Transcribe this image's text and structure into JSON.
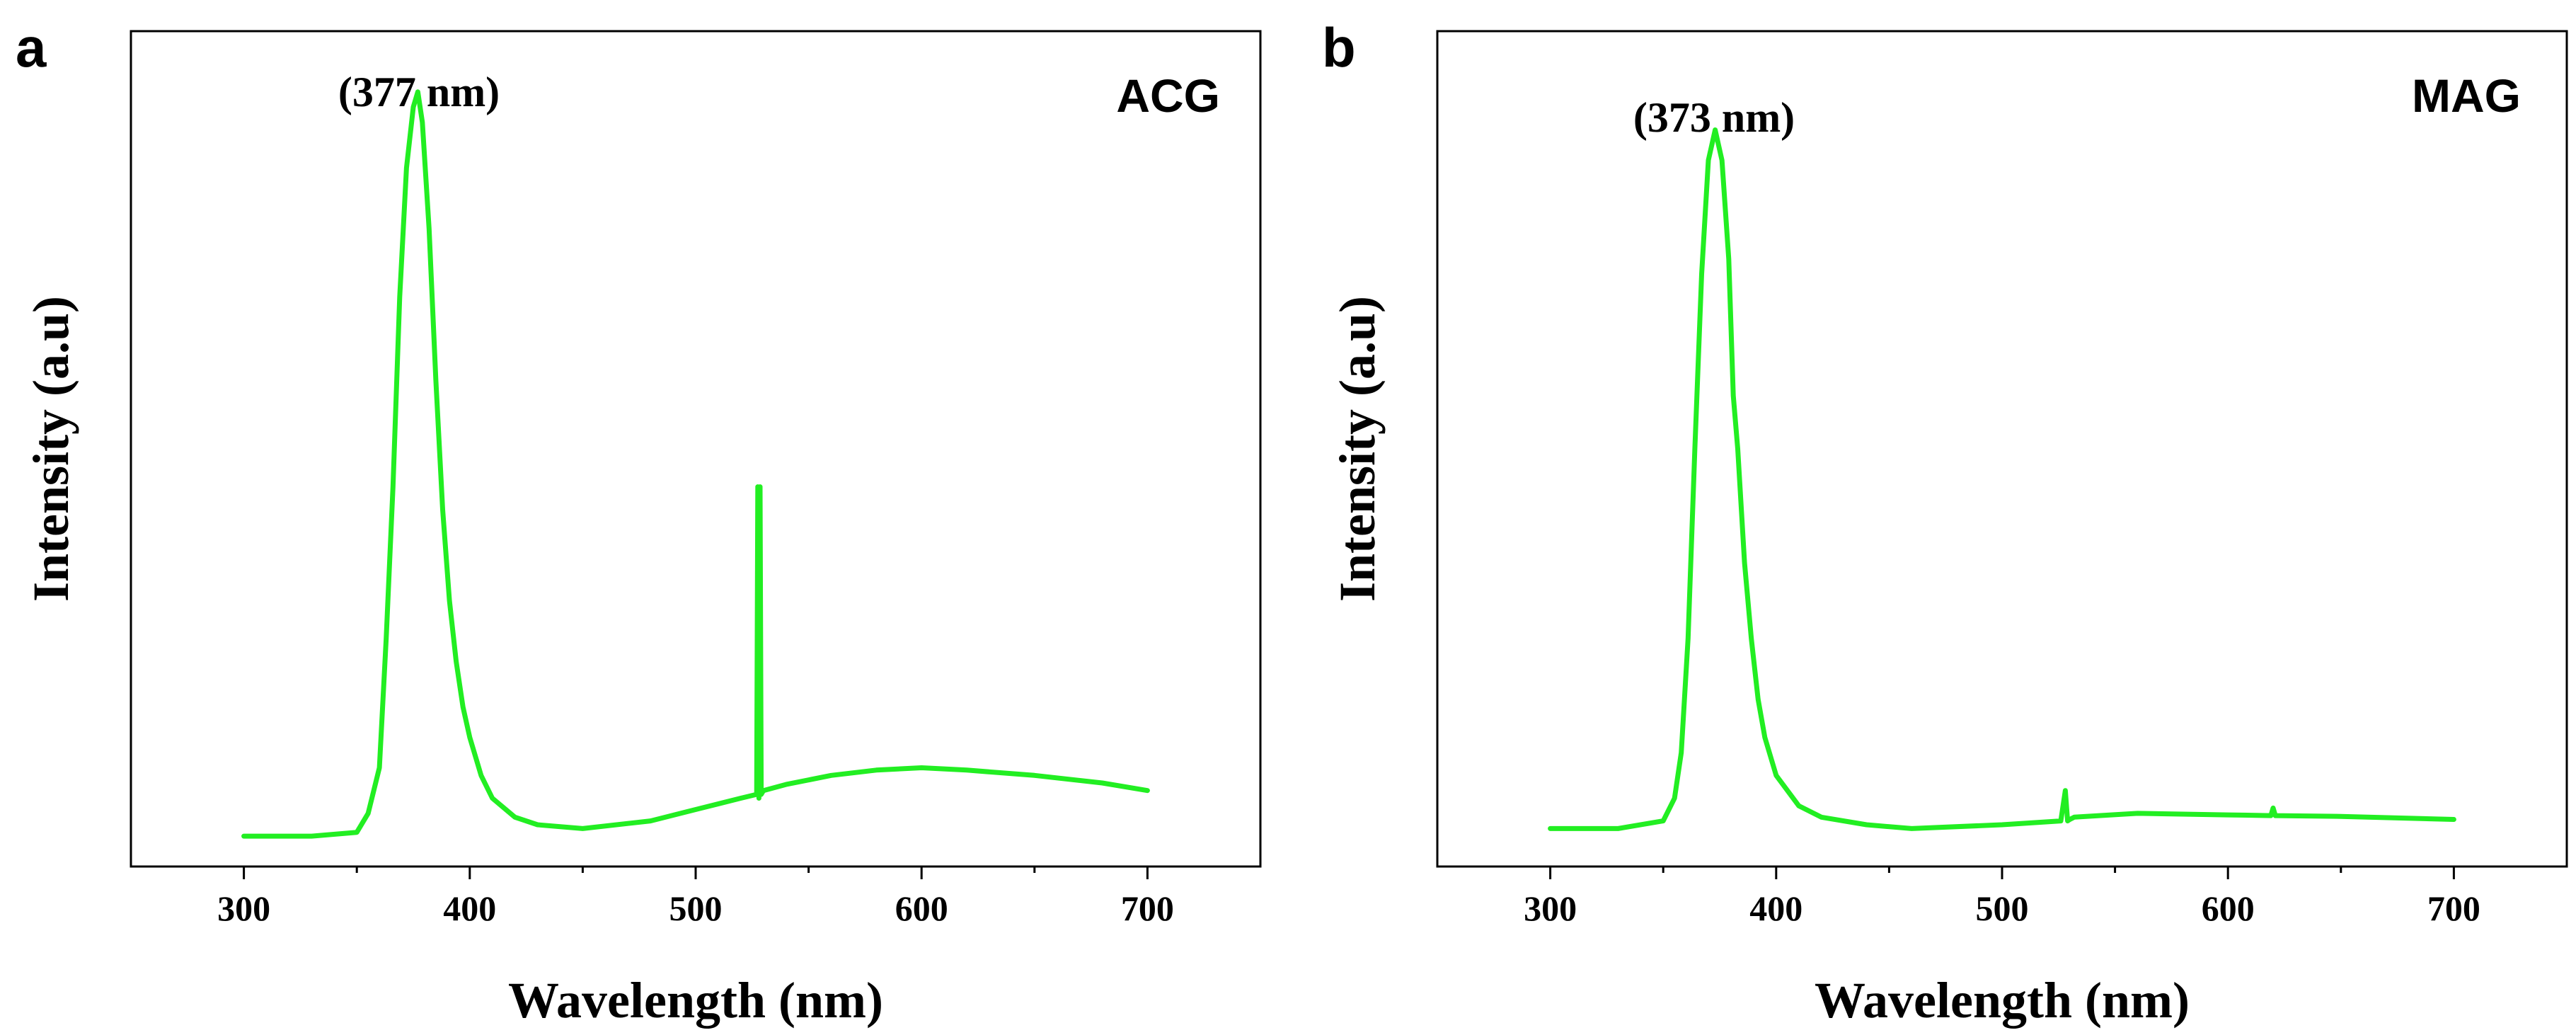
{
  "chart_data": [
    {
      "type": "line",
      "panel": "a",
      "sample": "ACG",
      "peak_label": "(377 nm)",
      "xlabel": "Wavelength (nm)",
      "ylabel": "Intensity (a.u)",
      "xlim": [
        250,
        750
      ],
      "ylim": [
        0,
        1.1
      ],
      "xticks": [
        300,
        400,
        500,
        600,
        700
      ],
      "x_minor_step": 50,
      "series_color": "#22ee22",
      "series": [
        {
          "name": "ACG",
          "x": [
            300,
            330,
            350,
            355,
            360,
            363,
            366,
            369,
            372,
            375,
            377,
            379,
            382,
            385,
            388,
            391,
            394,
            397,
            400,
            405,
            410,
            420,
            430,
            450,
            480,
            500,
            520,
            527,
            527.5,
            528,
            528.5,
            529,
            530,
            540,
            560,
            580,
            600,
            620,
            650,
            680,
            700
          ],
          "y": [
            0.04,
            0.04,
            0.045,
            0.07,
            0.13,
            0.3,
            0.5,
            0.75,
            0.92,
            1.0,
            1.02,
            0.98,
            0.84,
            0.64,
            0.47,
            0.35,
            0.27,
            0.21,
            0.17,
            0.12,
            0.09,
            0.065,
            0.055,
            0.05,
            0.06,
            0.075,
            0.09,
            0.095,
            0.5,
            0.09,
            0.5,
            0.095,
            0.1,
            0.108,
            0.12,
            0.127,
            0.13,
            0.127,
            0.12,
            0.11,
            0.1
          ]
        }
      ]
    },
    {
      "type": "line",
      "panel": "b",
      "sample": "MAG",
      "peak_label": "(373 nm)",
      "xlabel": "Wavelength (nm)",
      "ylabel": "Intensity (a.u)",
      "xlim": [
        250,
        750
      ],
      "ylim": [
        0,
        1.1
      ],
      "xticks": [
        300,
        400,
        500,
        600,
        700
      ],
      "x_minor_step": 50,
      "series_color": "#22ee22",
      "series": [
        {
          "name": "MAG",
          "x": [
            300,
            330,
            350,
            355,
            358,
            361,
            364,
            367,
            370,
            373,
            376,
            379,
            381,
            383,
            386,
            389,
            392,
            395,
            400,
            410,
            420,
            440,
            460,
            500,
            526,
            528,
            529,
            530,
            532,
            560,
            600,
            619,
            620,
            621,
            650,
            700
          ],
          "y": [
            0.05,
            0.05,
            0.06,
            0.09,
            0.15,
            0.3,
            0.55,
            0.78,
            0.93,
            0.97,
            0.93,
            0.8,
            0.62,
            0.55,
            0.4,
            0.3,
            0.22,
            0.17,
            0.12,
            0.08,
            0.065,
            0.055,
            0.05,
            0.055,
            0.06,
            0.1,
            0.06,
            0.062,
            0.065,
            0.07,
            0.068,
            0.067,
            0.077,
            0.067,
            0.066,
            0.062
          ]
        }
      ]
    }
  ]
}
